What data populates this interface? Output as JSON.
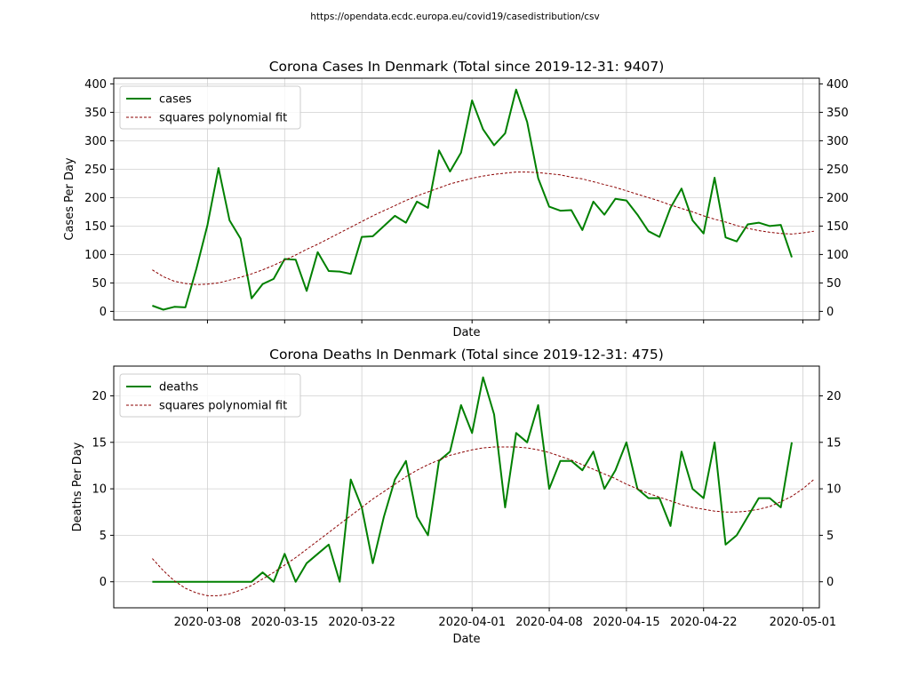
{
  "source_url": "https://opendata.ecdc.europa.eu/covid19/casedistribution/csv",
  "colors": {
    "data_line": "#008000",
    "fit_line": "#8b0000",
    "grid": "#d0d0d0",
    "axes": "#000000"
  },
  "chart_data": [
    {
      "type": "line",
      "title": "Corona Cases In Denmark (Total since 2019-12-31: 9407)",
      "xlabel": "Date",
      "ylabel": "Cases Per Day",
      "xlim": [
        -3.5,
        60.5
      ],
      "ylim": [
        -15,
        410
      ],
      "yticks": [
        0,
        50,
        100,
        150,
        200,
        250,
        300,
        350,
        400
      ],
      "x_tick_labels_shown": false,
      "grid": true,
      "legend": "top-left",
      "start_date": "2020-03-03",
      "series": [
        {
          "name": "cases",
          "style": "solid",
          "values": [
            10,
            3,
            8,
            7,
            75,
            152,
            252,
            160,
            128,
            23,
            48,
            57,
            92,
            91,
            36,
            104,
            71,
            70,
            66,
            131,
            132,
            150,
            168,
            156,
            193,
            182,
            283,
            246,
            279,
            371,
            320,
            292,
            313,
            390,
            333,
            234,
            184,
            177,
            178,
            143,
            193,
            170,
            198,
            195,
            170,
            141,
            131,
            182,
            216,
            160,
            137,
            235,
            130,
            123,
            153,
            156,
            150,
            152,
            95
          ]
        },
        {
          "name": "squares polynomial fit",
          "style": "dashed",
          "values": [
            73,
            61,
            53,
            49,
            47,
            48,
            50,
            55,
            60,
            66,
            73,
            81,
            90,
            99,
            109,
            118,
            128,
            138,
            148,
            158,
            168,
            177,
            186,
            195,
            203,
            210,
            217,
            224,
            229,
            234,
            238,
            241,
            243,
            245,
            245,
            244,
            242,
            240,
            236,
            233,
            228,
            223,
            218,
            212,
            206,
            200,
            194,
            187,
            181,
            175,
            168,
            162,
            157,
            151,
            146,
            142,
            139,
            137,
            136,
            138,
            141
          ]
        }
      ]
    },
    {
      "type": "line",
      "title": "Corona Deaths In Denmark (Total since 2019-12-31: 475)",
      "xlabel": "Date",
      "ylabel": "Deaths Per Day",
      "xlim": [
        -3.5,
        60.5
      ],
      "ylim": [
        -2.8,
        23.2
      ],
      "yticks": [
        0,
        5,
        10,
        15,
        20
      ],
      "x_tick_labels_shown": true,
      "grid": true,
      "legend": "top-left",
      "start_date": "2020-03-03",
      "series": [
        {
          "name": "deaths",
          "style": "solid",
          "values": [
            0,
            0,
            0,
            0,
            0,
            0,
            0,
            0,
            0,
            0,
            1,
            0,
            3,
            0,
            2,
            3,
            4,
            0,
            11,
            8,
            2,
            7,
            11,
            13,
            7,
            5,
            13,
            14,
            19,
            16,
            22,
            18,
            8,
            16,
            15,
            19,
            10,
            13,
            13,
            12,
            14,
            10,
            12,
            15,
            10,
            9,
            9,
            6,
            14,
            10,
            9,
            15,
            4,
            5,
            7,
            9,
            9,
            8,
            15
          ]
        },
        {
          "name": "squares polynomial fit",
          "style": "dashed",
          "values": [
            2.5,
            1.2,
            0.1,
            -0.7,
            -1.2,
            -1.5,
            -1.5,
            -1.3,
            -0.9,
            -0.4,
            0.3,
            1.0,
            1.8,
            2.6,
            3.5,
            4.4,
            5.3,
            6.2,
            7.1,
            8.0,
            8.9,
            9.7,
            10.5,
            11.3,
            12.0,
            12.6,
            13.1,
            13.6,
            13.9,
            14.2,
            14.4,
            14.5,
            14.5,
            14.5,
            14.4,
            14.2,
            13.9,
            13.5,
            13.1,
            12.6,
            12.1,
            11.6,
            11.1,
            10.5,
            10.0,
            9.5,
            9.1,
            8.7,
            8.3,
            8.0,
            7.8,
            7.6,
            7.5,
            7.5,
            7.6,
            7.8,
            8.1,
            8.6,
            9.2,
            10.0,
            11.0
          ]
        }
      ],
      "xtick_labels": [
        "2020-03-08",
        "2020-03-15",
        "2020-03-22",
        "2020-04-01",
        "2020-04-08",
        "2020-04-15",
        "2020-04-22",
        "2020-05-01"
      ]
    }
  ]
}
